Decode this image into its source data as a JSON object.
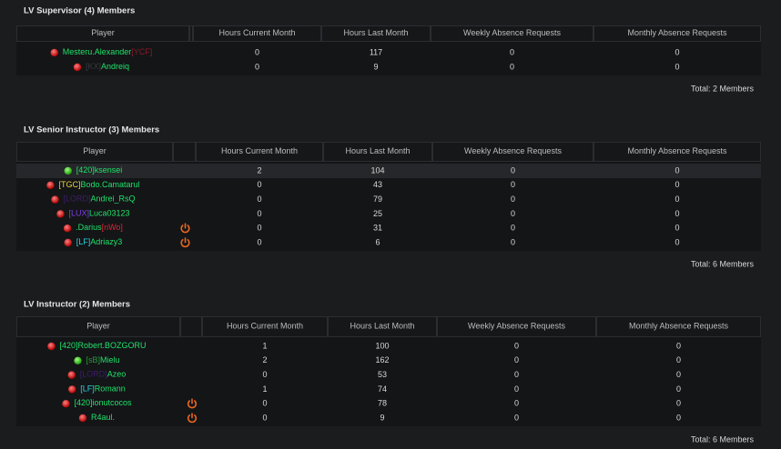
{
  "sections": [
    {
      "title": "LV Supervisor (4) Members",
      "columns": [
        "Player",
        "Hours Current Month",
        "Hours Last Month",
        "Weekly Absence Requests",
        "Monthly Absence Requests"
      ],
      "rows": [
        {
          "status": "offline",
          "away": false,
          "name": [
            {
              "text": "Mesteru.Alexander",
              "color": "#1ee36a"
            },
            {
              "text": "[YCF]",
              "color": "#8b1a2b"
            }
          ],
          "cells": [
            0,
            117,
            0,
            0
          ]
        },
        {
          "status": "offline",
          "away": false,
          "name": [
            {
              "text": "[KX]",
              "color": "#3a3a3a"
            },
            {
              "text": "Andreiq",
              "color": "#1ee36a"
            }
          ],
          "cells": [
            0,
            9,
            0,
            0
          ]
        }
      ],
      "total": "Total: 2 Members"
    },
    {
      "title": "LV Senior Instructor (3) Members",
      "columns": [
        "Player",
        "Hours Current Month",
        "Hours Last Month",
        "Weekly Absence Requests",
        "Monthly Absence Requests"
      ],
      "rows": [
        {
          "status": "online",
          "away": false,
          "highlight": true,
          "name": [
            {
              "text": "[420]ksensei",
              "color": "#1ee36a"
            }
          ],
          "cells": [
            2,
            104,
            0,
            0
          ]
        },
        {
          "status": "offline",
          "away": false,
          "name": [
            {
              "text": "[TGC]",
              "color": "#e8d33a"
            },
            {
              "text": "Bodo.Camatarul",
              "color": "#1ee36a"
            }
          ],
          "cells": [
            0,
            43,
            0,
            0
          ]
        },
        {
          "status": "offline",
          "away": false,
          "name": [
            {
              "text": "[LORD]",
              "color": "#3b1f6b"
            },
            {
              "text": "Andrei_RsQ",
              "color": "#1ee36a"
            }
          ],
          "cells": [
            0,
            79,
            0,
            0
          ]
        },
        {
          "status": "offline",
          "away": false,
          "name": [
            {
              "text": "[LUX]",
              "color": "#7b3fe4"
            },
            {
              "text": "Luca03123",
              "color": "#1ee36a"
            }
          ],
          "cells": [
            0,
            25,
            0,
            0
          ]
        },
        {
          "status": "offline",
          "away": true,
          "name": [
            {
              "text": ".Darius",
              "color": "#1ee36a"
            },
            {
              "text": "[nWo]",
              "color": "#d6283a"
            }
          ],
          "cells": [
            0,
            31,
            0,
            0
          ]
        },
        {
          "status": "offline",
          "away": true,
          "name": [
            {
              "text": "[LF]",
              "color": "#2ad4e4"
            },
            {
              "text": "Adriazy3",
              "color": "#1ee36a"
            }
          ],
          "cells": [
            0,
            6,
            0,
            0
          ]
        }
      ],
      "total": "Total: 6 Members"
    },
    {
      "title": "LV Instructor (2) Members",
      "columns": [
        "Player",
        "Hours Current Month",
        "Hours Last Month",
        "Weekly Absence Requests",
        "Monthly Absence Requests"
      ],
      "rows": [
        {
          "status": "offline",
          "away": false,
          "name": [
            {
              "text": "[420]Robert.BOZGORU",
              "color": "#1ee36a"
            }
          ],
          "cells": [
            1,
            100,
            0,
            0
          ]
        },
        {
          "status": "online",
          "away": false,
          "name": [
            {
              "text": "[sB]",
              "color": "#2a9a3a"
            },
            {
              "text": "Mielu",
              "color": "#1ee36a"
            }
          ],
          "cells": [
            2,
            162,
            0,
            0
          ]
        },
        {
          "status": "offline",
          "away": false,
          "name": [
            {
              "text": "[LORD]",
              "color": "#3b1f6b"
            },
            {
              "text": "Azeo",
              "color": "#1ee36a"
            }
          ],
          "cells": [
            0,
            53,
            0,
            0
          ]
        },
        {
          "status": "offline",
          "away": false,
          "name": [
            {
              "text": "[LF]",
              "color": "#2ad4e4"
            },
            {
              "text": "Romann",
              "color": "#1ee36a"
            }
          ],
          "cells": [
            1,
            74,
            0,
            0
          ]
        },
        {
          "status": "offline",
          "away": true,
          "name": [
            {
              "text": "[420]ionutcocos",
              "color": "#1ee36a"
            }
          ],
          "cells": [
            0,
            78,
            0,
            0
          ]
        },
        {
          "status": "offline",
          "away": true,
          "name": [
            {
              "text": "R4aul.",
              "color": "#1ee36a"
            }
          ],
          "cells": [
            0,
            9,
            0,
            0
          ]
        }
      ],
      "total": "Total: 6 Members"
    }
  ]
}
